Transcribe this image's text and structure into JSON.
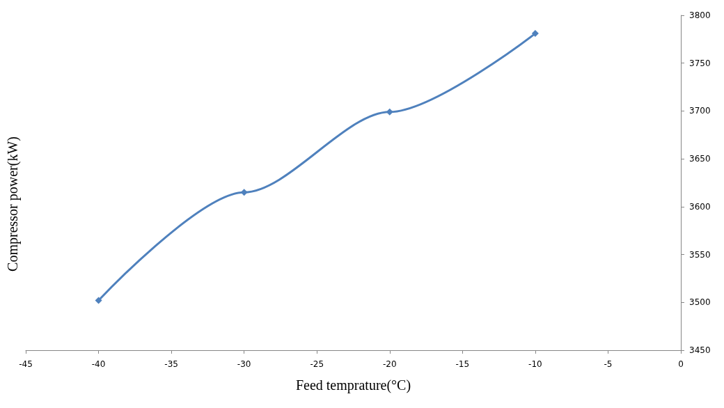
{
  "chart_data": {
    "type": "line",
    "xlabel": "Feed temprature(°C)",
    "ylabel": "Compressor power(kW)",
    "x": [
      -40,
      -30,
      -20,
      -10
    ],
    "series": [
      {
        "color": "#4f81bd",
        "values": [
          3502,
          3615,
          3699,
          3781
        ]
      }
    ],
    "xlim": [
      -45,
      0
    ],
    "xticks": [
      -45,
      -40,
      -35,
      -30,
      -25,
      -20,
      -15,
      -10,
      -5,
      0
    ],
    "ylim": [
      3450,
      3800
    ],
    "yticks": [
      3450,
      3500,
      3550,
      3600,
      3650,
      3700,
      3750,
      3800
    ],
    "marker": "diamond",
    "line_style": "solid"
  }
}
